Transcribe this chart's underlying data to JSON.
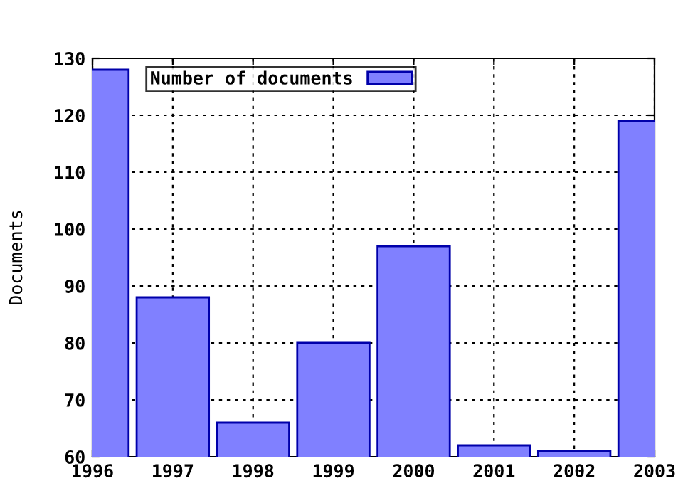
{
  "chart_data": {
    "type": "bar",
    "ylabel": "Documents",
    "x": [
      1996,
      1997,
      1998,
      1999,
      2000,
      2001,
      2002,
      2003
    ],
    "series": [
      {
        "name": "Number of documents",
        "color": "#8080ff",
        "values": [
          128,
          88,
          66,
          80,
          97,
          62,
          61,
          119
        ]
      }
    ],
    "xlim": [
      1996,
      2003
    ],
    "xticks": [
      1996,
      1997,
      1998,
      1999,
      2000,
      2001,
      2002,
      2003
    ],
    "ylim": [
      60,
      130
    ],
    "yticks": [
      60,
      70,
      80,
      90,
      100,
      110,
      120,
      130
    ],
    "grid": true,
    "legend": "top left"
  }
}
